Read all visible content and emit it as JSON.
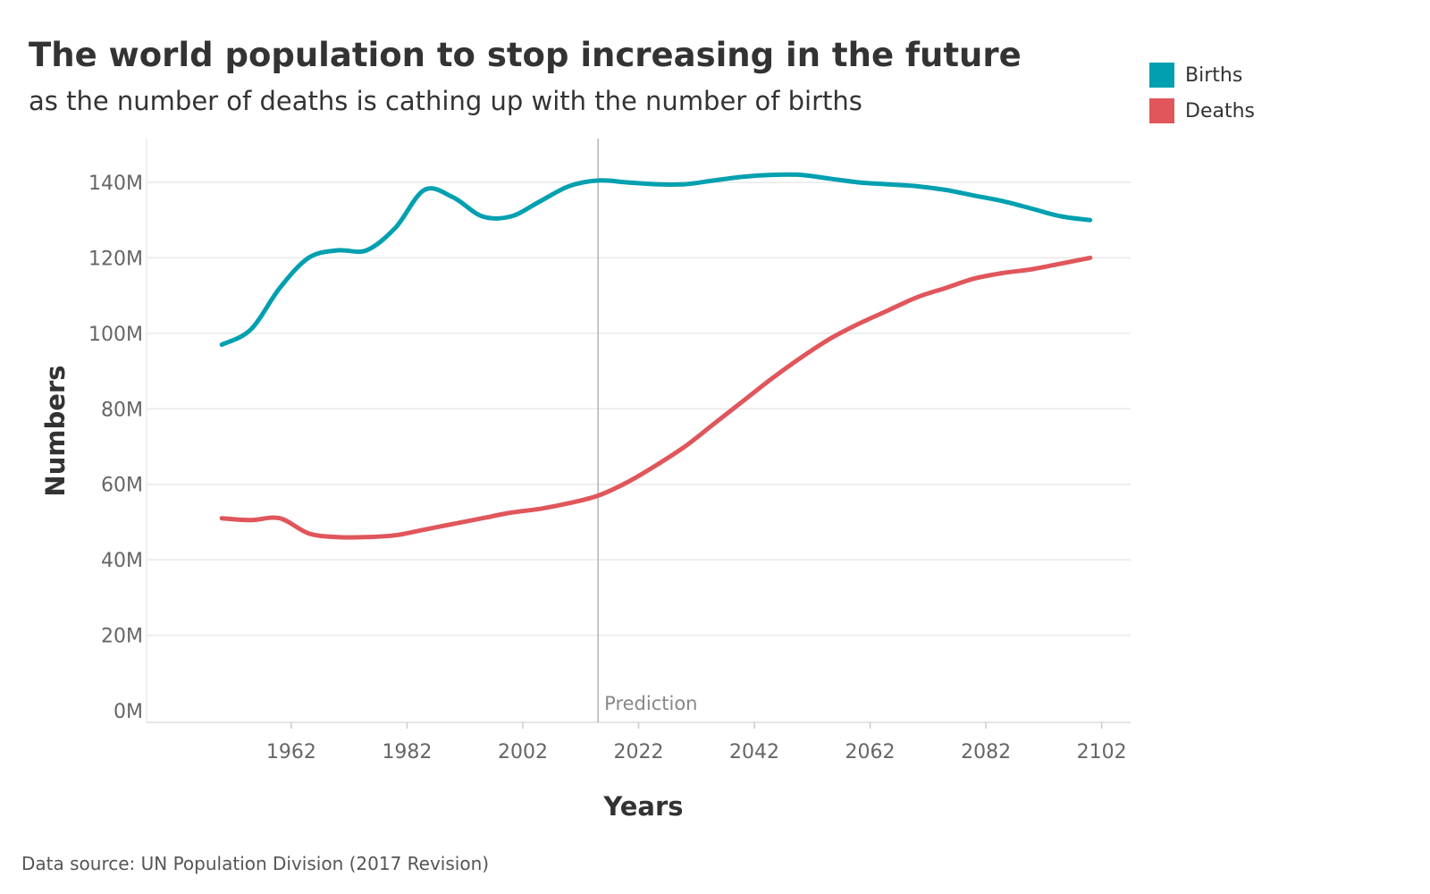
{
  "title": "The world population to stop increasing in the future",
  "subtitle": "as the number of deaths is cathing up with the number of births",
  "source": "Data source: UN Population Division (2017 Revision)",
  "legend": [
    {
      "label": "Births",
      "color": "#00A0B0"
    },
    {
      "label": "Deaths",
      "color": "#E0565B"
    }
  ],
  "chart_data": {
    "type": "line",
    "xlabel": "Years",
    "ylabel": "Numbers",
    "xlim": [
      1937,
      2107
    ],
    "ylim": [
      0,
      150
    ],
    "x_ticks": [
      1962,
      1982,
      2002,
      2022,
      2042,
      2062,
      2082,
      2102
    ],
    "y_ticks": [
      {
        "value": 0,
        "label": "0M"
      },
      {
        "value": 20,
        "label": "20M"
      },
      {
        "value": 40,
        "label": "40M"
      },
      {
        "value": 60,
        "label": "60M"
      },
      {
        "value": 80,
        "label": "80M"
      },
      {
        "value": 100,
        "label": "100M"
      },
      {
        "value": 120,
        "label": "120M"
      },
      {
        "value": 140,
        "label": "140M"
      }
    ],
    "grid": true,
    "annotation": {
      "x": 2015,
      "label": "Prediction"
    },
    "series": [
      {
        "name": "Births",
        "color": "#00A0B0",
        "x": [
          1950,
          1955,
          1960,
          1965,
          1970,
          1975,
          1980,
          1985,
          1990,
          1995,
          2000,
          2005,
          2010,
          2015,
          2020,
          2025,
          2030,
          2035,
          2040,
          2045,
          2050,
          2055,
          2060,
          2065,
          2070,
          2075,
          2080,
          2085,
          2090,
          2095,
          2100
        ],
        "values": [
          97,
          101,
          112,
          120,
          122,
          122,
          128,
          138,
          136,
          131,
          131,
          135,
          139,
          140.5,
          140,
          139.5,
          139.5,
          140.5,
          141.5,
          142,
          142,
          141,
          140,
          139.5,
          139,
          138,
          136.5,
          135,
          133,
          131,
          130
        ]
      },
      {
        "name": "Deaths",
        "color": "#E0565B",
        "x": [
          1950,
          1955,
          1960,
          1965,
          1970,
          1975,
          1980,
          1985,
          1990,
          1995,
          2000,
          2005,
          2010,
          2015,
          2020,
          2025,
          2030,
          2035,
          2040,
          2045,
          2050,
          2055,
          2060,
          2065,
          2070,
          2075,
          2080,
          2085,
          2090,
          2095,
          2100
        ],
        "values": [
          51,
          50.5,
          51,
          47,
          46,
          46,
          46.5,
          48,
          49.5,
          51,
          52.5,
          53.5,
          55,
          57,
          60.5,
          65,
          70,
          76,
          82,
          88,
          93.5,
          98.5,
          102.5,
          106,
          109.5,
          112,
          114.5,
          116,
          117,
          118.5,
          120
        ]
      }
    ]
  }
}
